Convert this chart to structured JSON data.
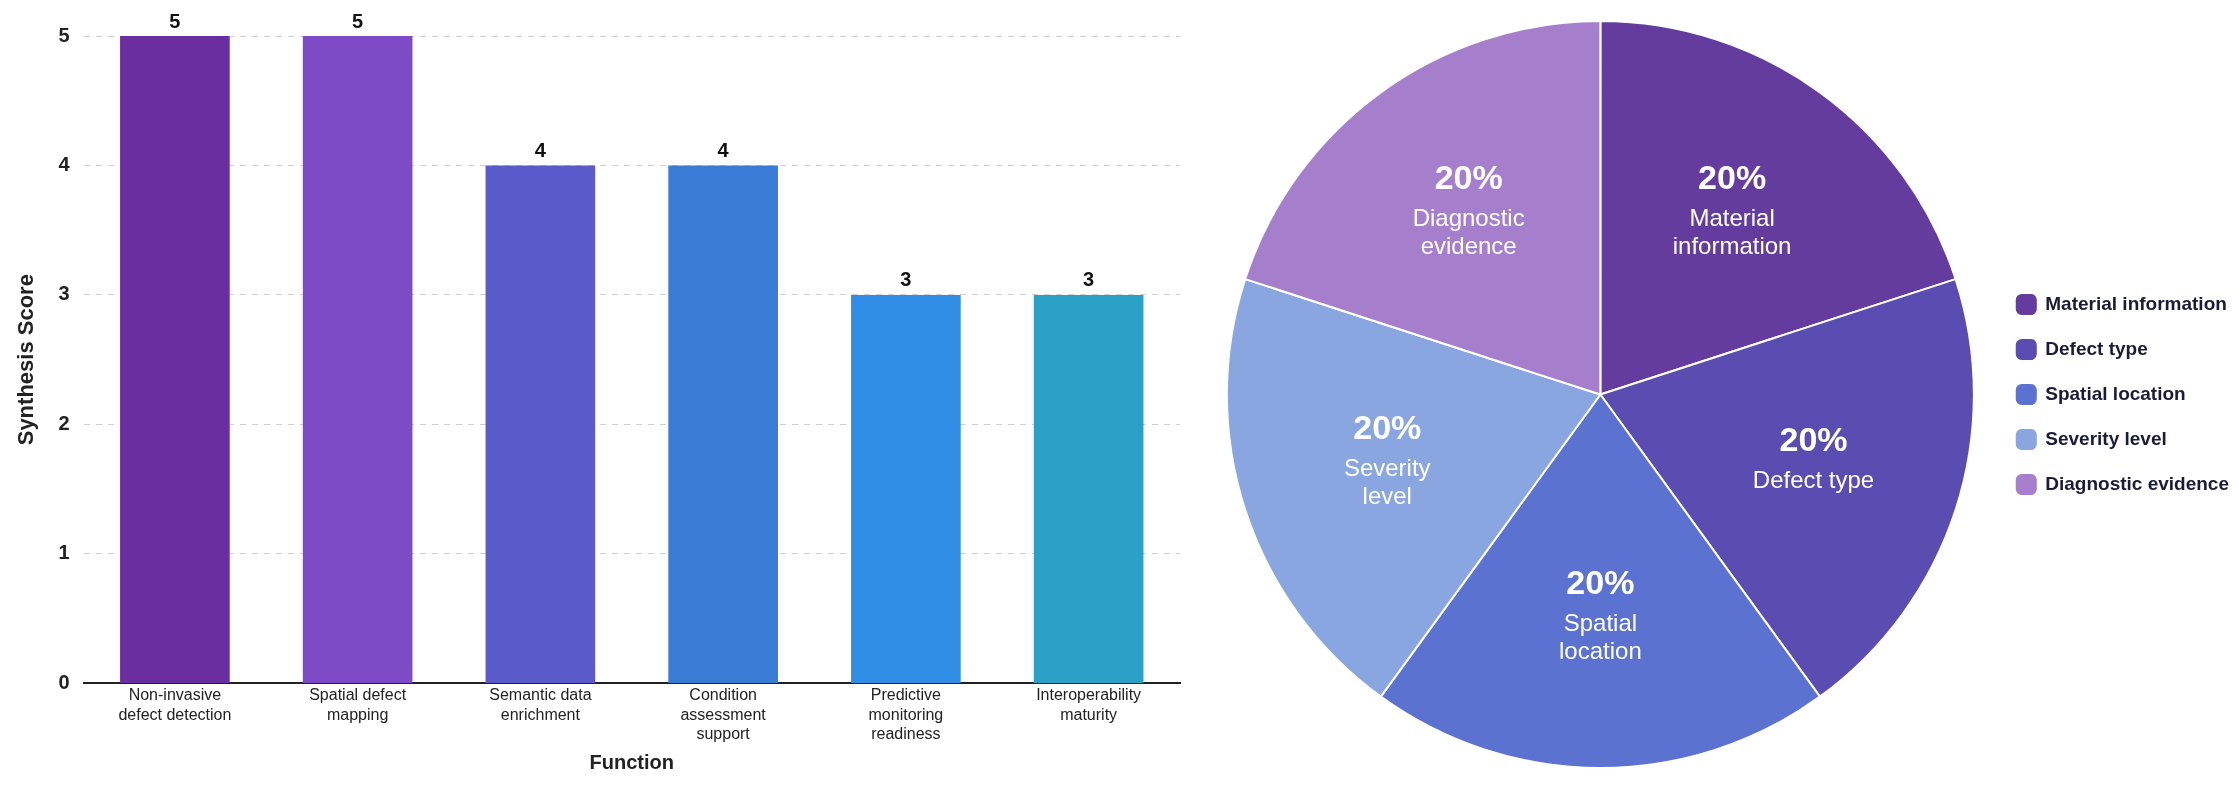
{
  "chart_data": [
    {
      "type": "bar",
      "xlabel": "Function",
      "ylabel": "Synthesis Score",
      "categories": [
        "Non-invasive defect detection",
        "Spatial defect mapping",
        "Semantic data enrichment",
        "Condition assessment support",
        "Predictive monitoring readiness",
        "Interoperability maturity"
      ],
      "values": [
        5,
        5,
        4,
        4,
        3,
        3
      ],
      "colors": [
        "#6a2ea0",
        "#7e4bc6",
        "#5b5acb",
        "#3a7bd5",
        "#2f8de6",
        "#2aa0c6"
      ],
      "ylim": [
        0,
        5
      ],
      "yticks": [
        0,
        1,
        2,
        3,
        4,
        5
      ],
      "grid": "y",
      "data_labels": true,
      "legend": false
    },
    {
      "type": "pie",
      "categories": [
        "Material information",
        "Defect type",
        "Spatial location",
        "Severity level",
        "Diagnostic evidence"
      ],
      "values": [
        20,
        20,
        20,
        20,
        20
      ],
      "colors": [
        "#643c9e",
        "#5a4cb0",
        "#5b72d0",
        "#8aa6e0",
        "#a67fcc"
      ],
      "value_labels": [
        "20%",
        "20%",
        "20%",
        "20%",
        "20%"
      ],
      "legend": "right"
    }
  ]
}
